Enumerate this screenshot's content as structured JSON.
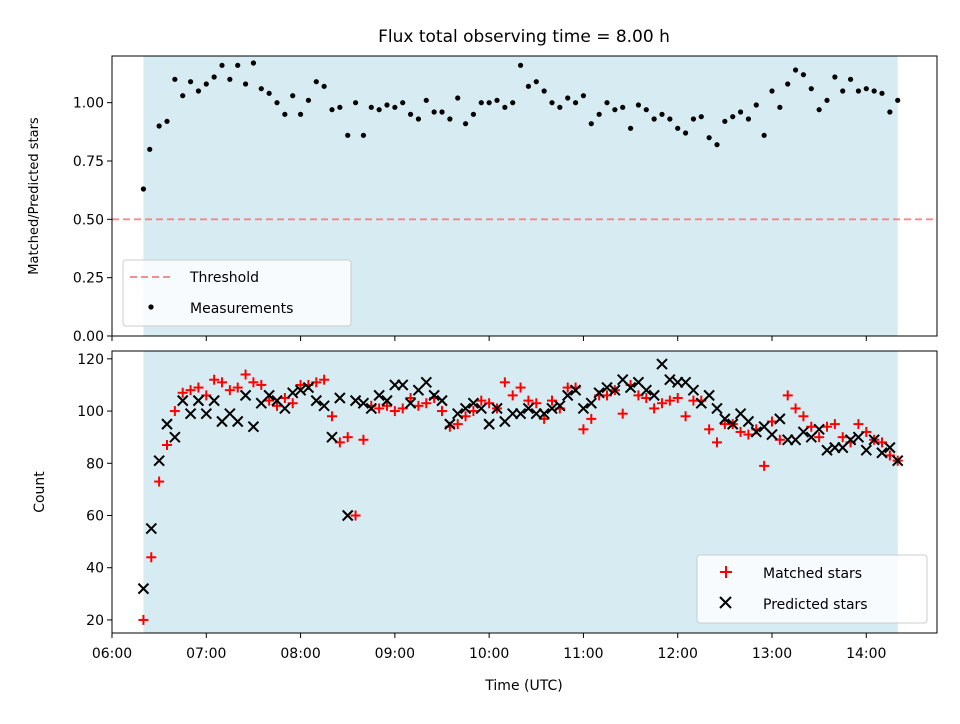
{
  "chart_data": [
    {
      "type": "scatter",
      "title": "Flux total observing time = 8.00 h",
      "ylabel": "Matched/Predicted stars",
      "xlim": [
        "06:00",
        "14:45"
      ],
      "ylim": [
        0,
        1.2
      ],
      "yticks": [
        "0.00",
        "0.25",
        "0.50",
        "0.75",
        "1.00"
      ],
      "shaded_span": [
        "06:20",
        "14:20"
      ],
      "shade_color": "#add8e6",
      "threshold": {
        "name": "Threshold",
        "y": 0.5,
        "color": "#f08080",
        "style": "dashed"
      },
      "legend_position": "lower-left",
      "series": [
        {
          "name": "Measurements",
          "color": "#000000",
          "marker": "dot",
          "x": [
            "06:20",
            "06:24",
            "06:30",
            "06:35",
            "06:40",
            "06:45",
            "06:50",
            "06:55",
            "07:00",
            "07:05",
            "07:10",
            "07:15",
            "07:20",
            "07:25",
            "07:30",
            "07:35",
            "07:40",
            "07:45",
            "07:50",
            "07:55",
            "08:00",
            "08:05",
            "08:10",
            "08:15",
            "08:20",
            "08:25",
            "08:30",
            "08:35",
            "08:40",
            "08:45",
            "08:50",
            "08:55",
            "09:00",
            "09:05",
            "09:10",
            "09:15",
            "09:20",
            "09:25",
            "09:30",
            "09:35",
            "09:40",
            "09:45",
            "09:50",
            "09:55",
            "10:00",
            "10:05",
            "10:10",
            "10:15",
            "10:20",
            "10:25",
            "10:30",
            "10:35",
            "10:40",
            "10:45",
            "10:50",
            "10:55",
            "11:00",
            "11:05",
            "11:10",
            "11:15",
            "11:20",
            "11:25",
            "11:30",
            "11:35",
            "11:40",
            "11:45",
            "11:50",
            "11:55",
            "12:00",
            "12:05",
            "12:10",
            "12:15",
            "12:20",
            "12:25",
            "12:30",
            "12:35",
            "12:40",
            "12:45",
            "12:50",
            "12:55",
            "13:00",
            "13:05",
            "13:10",
            "13:15",
            "13:20",
            "13:25",
            "13:30",
            "13:35",
            "13:40",
            "13:45",
            "13:50",
            "13:55",
            "14:00",
            "14:05",
            "14:10",
            "14:15",
            "14:20"
          ],
          "y": [
            0.63,
            0.8,
            0.9,
            0.92,
            1.1,
            1.03,
            1.09,
            1.05,
            1.08,
            1.11,
            1.16,
            1.1,
            1.16,
            1.08,
            1.17,
            1.06,
            1.04,
            1.0,
            0.95,
            1.03,
            0.95,
            1.01,
            1.09,
            1.07,
            0.97,
            0.98,
            0.86,
            1.0,
            0.86,
            0.98,
            0.97,
            0.99,
            0.98,
            1.0,
            0.95,
            0.93,
            1.01,
            0.96,
            0.96,
            0.93,
            1.02,
            0.91,
            0.95,
            1.0,
            1.0,
            1.01,
            0.98,
            1.0,
            1.16,
            1.07,
            1.09,
            1.05,
            1.0,
            0.98,
            1.02,
            1.0,
            1.03,
            0.91,
            0.95,
            1.0,
            0.97,
            0.98,
            0.89,
            0.99,
            0.97,
            0.93,
            0.95,
            0.93,
            0.89,
            0.87,
            0.93,
            0.94,
            0.85,
            0.82,
            0.92,
            0.94,
            0.96,
            0.93,
            0.99,
            0.86,
            1.05,
            0.98,
            1.08,
            1.14,
            1.12,
            1.06,
            0.97,
            1.01,
            1.11,
            1.05,
            1.1,
            1.05,
            1.06,
            1.05,
            1.04,
            0.96,
            1.01
          ]
        }
      ]
    },
    {
      "type": "scatter",
      "xlabel": "Time (UTC)",
      "ylabel": "Count",
      "xlim": [
        "06:00",
        "14:45"
      ],
      "ylim": [
        15,
        123
      ],
      "yticks": [
        "20",
        "40",
        "60",
        "80",
        "100",
        "120"
      ],
      "xticks": [
        "06:00",
        "07:00",
        "08:00",
        "09:00",
        "10:00",
        "11:00",
        "12:00",
        "13:00",
        "14:00"
      ],
      "shaded_span": [
        "06:20",
        "14:20"
      ],
      "shade_color": "#add8e6",
      "legend_position": "lower-right",
      "series": [
        {
          "name": "Matched stars",
          "color": "#ff0000",
          "marker": "plus",
          "x": [
            "06:20",
            "06:25",
            "06:30",
            "06:35",
            "06:40",
            "06:45",
            "06:50",
            "06:55",
            "07:00",
            "07:05",
            "07:10",
            "07:15",
            "07:20",
            "07:25",
            "07:30",
            "07:35",
            "07:40",
            "07:45",
            "07:50",
            "07:55",
            "08:00",
            "08:05",
            "08:10",
            "08:15",
            "08:20",
            "08:25",
            "08:30",
            "08:35",
            "08:40",
            "08:45",
            "08:50",
            "08:55",
            "09:00",
            "09:05",
            "09:10",
            "09:15",
            "09:20",
            "09:25",
            "09:30",
            "09:35",
            "09:40",
            "09:45",
            "09:50",
            "09:55",
            "10:00",
            "10:05",
            "10:10",
            "10:15",
            "10:20",
            "10:25",
            "10:30",
            "10:35",
            "10:40",
            "10:45",
            "10:50",
            "10:55",
            "11:00",
            "11:05",
            "11:10",
            "11:15",
            "11:20",
            "11:25",
            "11:30",
            "11:35",
            "11:40",
            "11:45",
            "11:50",
            "11:55",
            "12:00",
            "12:05",
            "12:10",
            "12:15",
            "12:20",
            "12:25",
            "12:30",
            "12:35",
            "12:40",
            "12:45",
            "12:50",
            "12:55",
            "13:00",
            "13:05",
            "13:10",
            "13:15",
            "13:20",
            "13:25",
            "13:30",
            "13:35",
            "13:40",
            "13:45",
            "13:50",
            "13:55",
            "14:00",
            "14:05",
            "14:10",
            "14:15",
            "14:20"
          ],
          "y": [
            20,
            44,
            73,
            87,
            100,
            107,
            108,
            109,
            106,
            112,
            111,
            108,
            109,
            114,
            111,
            110,
            104,
            102,
            105,
            103,
            110,
            110,
            111,
            112,
            98,
            88,
            90,
            60,
            89,
            102,
            101,
            102,
            100,
            101,
            105,
            102,
            103,
            105,
            100,
            94,
            95,
            98,
            100,
            104,
            103,
            101,
            111,
            106,
            109,
            104,
            103,
            97,
            104,
            101,
            109,
            109,
            93,
            97,
            106,
            106,
            108,
            99,
            110,
            106,
            105,
            101,
            103,
            104,
            105,
            98,
            104,
            104,
            93,
            88,
            95,
            95,
            92,
            91,
            93,
            79,
            96,
            89,
            106,
            101,
            98,
            94,
            90,
            94,
            95,
            90,
            88,
            95,
            92,
            89,
            88,
            83,
            81
          ]
        },
        {
          "name": "Predicted stars",
          "color": "#000000",
          "marker": "x",
          "x": [
            "06:20",
            "06:25",
            "06:30",
            "06:35",
            "06:40",
            "06:45",
            "06:50",
            "06:55",
            "07:00",
            "07:05",
            "07:10",
            "07:15",
            "07:20",
            "07:25",
            "07:30",
            "07:35",
            "07:40",
            "07:45",
            "07:50",
            "07:55",
            "08:00",
            "08:05",
            "08:10",
            "08:15",
            "08:20",
            "08:25",
            "08:30",
            "08:35",
            "08:40",
            "08:45",
            "08:50",
            "08:55",
            "09:00",
            "09:05",
            "09:10",
            "09:15",
            "09:20",
            "09:25",
            "09:30",
            "09:35",
            "09:40",
            "09:45",
            "09:50",
            "09:55",
            "10:00",
            "10:05",
            "10:10",
            "10:15",
            "10:20",
            "10:25",
            "10:30",
            "10:35",
            "10:40",
            "10:45",
            "10:50",
            "10:55",
            "11:00",
            "11:05",
            "11:10",
            "11:15",
            "11:20",
            "11:25",
            "11:30",
            "11:35",
            "11:40",
            "11:45",
            "11:50",
            "11:55",
            "12:00",
            "12:05",
            "12:10",
            "12:15",
            "12:20",
            "12:25",
            "12:30",
            "12:35",
            "12:40",
            "12:45",
            "12:50",
            "12:55",
            "13:00",
            "13:05",
            "13:10",
            "13:15",
            "13:20",
            "13:25",
            "13:30",
            "13:35",
            "13:40",
            "13:45",
            "13:50",
            "13:55",
            "14:00",
            "14:05",
            "14:10",
            "14:15",
            "14:20"
          ],
          "y": [
            32,
            55,
            81,
            95,
            90,
            104,
            99,
            104,
            99,
            104,
            96,
            99,
            96,
            106,
            94,
            103,
            106,
            104,
            101,
            107,
            108,
            109,
            104,
            102,
            90,
            105,
            60,
            104,
            103,
            101,
            106,
            104,
            110,
            110,
            103,
            108,
            111,
            106,
            104,
            95,
            99,
            101,
            103,
            101,
            95,
            101,
            96,
            99,
            99,
            101,
            99,
            99,
            101,
            102,
            106,
            108,
            101,
            103,
            107,
            109,
            108,
            112,
            109,
            111,
            108,
            106,
            118,
            112,
            111,
            111,
            108,
            103,
            106,
            101,
            97,
            95,
            99,
            96,
            92,
            94,
            91,
            97,
            89,
            89,
            92,
            90,
            93,
            85,
            86,
            86,
            89,
            90,
            85,
            89,
            84,
            86,
            81
          ]
        }
      ]
    }
  ]
}
